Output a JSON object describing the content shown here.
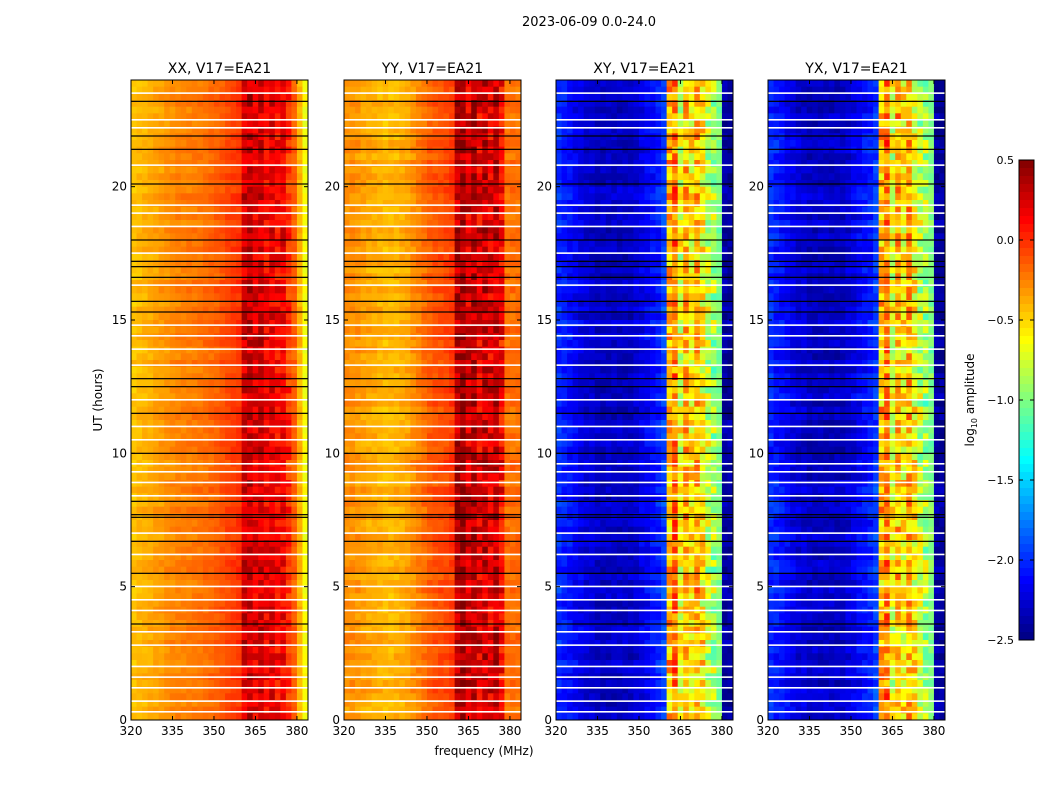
{
  "chart_data": {
    "type": "heatmap",
    "title": "2023-06-09 0.0-24.0",
    "xlabel": "frequency (MHz)",
    "ylabel": "UT (hours)",
    "xlim": [
      320,
      384
    ],
    "ylim": [
      0,
      24
    ],
    "xticks": [
      "320",
      "335",
      "350",
      "365",
      "380"
    ],
    "xtick_values": [
      320,
      335,
      350,
      365,
      380
    ],
    "yticks": [
      "0",
      "5",
      "10",
      "15",
      "20"
    ],
    "ytick_values": [
      0,
      5,
      10,
      15,
      20
    ],
    "colorbar": {
      "label": "log",
      "label_sub": "10",
      "label_suffix": " amplitude",
      "range": [
        -2.5,
        0.5
      ],
      "ticks": [
        "0.5",
        "0.0",
        "−0.5",
        "−1.0",
        "−1.5",
        "−2.0",
        "−2.5"
      ],
      "tick_values": [
        0.5,
        0.0,
        -0.5,
        -1.0,
        -1.5,
        -2.0,
        -2.5
      ],
      "colormap": "jet"
    },
    "freq_bin_mhz": 2,
    "time_bin_hours": 0.25,
    "panels": [
      {
        "title": "XX, V17=EA21",
        "profile": [
          -0.45,
          -0.42,
          -0.4,
          -0.38,
          -0.35,
          -0.33,
          -0.3,
          -0.28,
          -0.26,
          -0.25,
          -0.24,
          -0.23,
          -0.22,
          -0.2,
          -0.18,
          -0.15,
          -0.12,
          -0.08,
          -0.05,
          -0.02,
          0.25,
          0.3,
          0.2,
          0.25,
          0.15,
          0.2,
          0.12,
          0.15,
          0.0,
          -0.15,
          -0.4,
          -0.65
        ],
        "noise": 0.08
      },
      {
        "title": "YY, V17=EA21",
        "profile": [
          -0.3,
          -0.3,
          -0.32,
          -0.35,
          -0.37,
          -0.38,
          -0.4,
          -0.42,
          -0.42,
          -0.4,
          -0.38,
          -0.35,
          -0.3,
          -0.25,
          -0.2,
          -0.15,
          -0.12,
          -0.1,
          -0.08,
          -0.05,
          0.35,
          0.4,
          0.25,
          0.35,
          0.2,
          0.3,
          0.2,
          0.3,
          0.1,
          -0.2,
          -0.2,
          -0.2
        ],
        "noise": 0.1
      },
      {
        "title": "XY, V17=EA21",
        "profile": [
          -2.0,
          -2.05,
          -2.1,
          -2.15,
          -2.2,
          -2.25,
          -2.25,
          -2.3,
          -2.3,
          -2.3,
          -2.3,
          -2.3,
          -2.3,
          -2.3,
          -2.25,
          -2.2,
          -2.15,
          -2.1,
          -2.05,
          -1.95,
          -0.4,
          -0.2,
          -0.7,
          -0.4,
          -0.6,
          -0.4,
          -0.6,
          -0.8,
          -0.9,
          -1.0,
          -2.4,
          -2.4
        ],
        "noise": 0.15
      },
      {
        "title": "YX, V17=EA21",
        "profile": [
          -2.0,
          -2.05,
          -2.1,
          -2.15,
          -2.2,
          -2.25,
          -2.25,
          -2.3,
          -2.3,
          -2.3,
          -2.3,
          -2.3,
          -2.3,
          -2.3,
          -2.25,
          -2.2,
          -2.15,
          -2.1,
          -2.05,
          -1.95,
          -0.4,
          -0.2,
          -0.7,
          -0.4,
          -0.6,
          -0.4,
          -0.6,
          -0.8,
          -0.9,
          -1.0,
          -2.4,
          -2.4
        ],
        "noise": 0.15
      }
    ],
    "flagged_hours_white": [
      0.3,
      0.7,
      1.2,
      1.6,
      2.0,
      2.8,
      3.3,
      4.1,
      4.5,
      5.0,
      6.2,
      7.0,
      8.4,
      8.9,
      9.3,
      9.6,
      10.5,
      11.0,
      12.0,
      13.3,
      13.9,
      14.4,
      14.8,
      16.3,
      17.5,
      18.5,
      19.0,
      19.3,
      20.8,
      22.2,
      22.5,
      23.5
    ],
    "boundary_hours_black": [
      3.6,
      5.5,
      6.7,
      7.6,
      7.7,
      8.2,
      10.0,
      11.5,
      12.5,
      12.8,
      15.3,
      15.7,
      16.6,
      17.0,
      17.2,
      18.0,
      20.1,
      21.4,
      21.9,
      23.2
    ]
  }
}
